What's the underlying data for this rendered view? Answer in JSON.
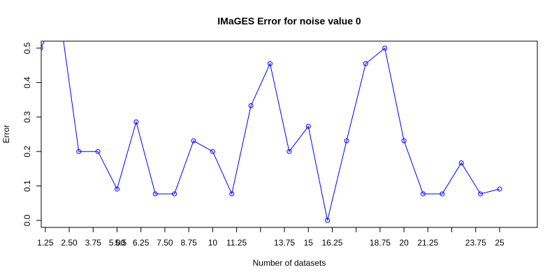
{
  "chart_data": {
    "type": "line",
    "title": "IMaGES Error for noise value 0",
    "xlabel": "Number of datasets",
    "ylabel": "Error",
    "xlim": [
      0,
      25.5
    ],
    "ylim": [
      -0.02,
      0.52
    ],
    "x_ticks": [
      {
        "value": 1.25,
        "label": "1.25"
      },
      {
        "value": 2.5,
        "label": "2.50"
      },
      {
        "value": 3.75,
        "label": "3.75"
      },
      {
        "value": 5.0,
        "label": "5.00"
      },
      {
        "value": 6.25,
        "label": "6.25"
      },
      {
        "value": 7.5,
        "label": "7.50"
      },
      {
        "value": 8.75,
        "label": "8.75"
      },
      {
        "value": 10,
        "label": "10"
      },
      {
        "value": 11.25,
        "label": "11.25"
      },
      {
        "value": 12.5,
        "label": ""
      },
      {
        "value": 13.75,
        "label": "13.75"
      },
      {
        "value": 15,
        "label": "15"
      },
      {
        "value": 16.25,
        "label": "16.25"
      },
      {
        "value": 17.5,
        "label": ""
      },
      {
        "value": 18.75,
        "label": "18.75"
      },
      {
        "value": 20,
        "label": "20"
      },
      {
        "value": 21.25,
        "label": "21.25"
      },
      {
        "value": 22.5,
        "label": ""
      },
      {
        "value": 23.75,
        "label": "23.75"
      },
      {
        "value": 25,
        "label": "25"
      }
    ],
    "y_ticks": [
      {
        "value": 0.0,
        "label": "0.0"
      },
      {
        "value": 0.1,
        "label": "0.1"
      },
      {
        "value": 0.2,
        "label": "0.2"
      },
      {
        "value": 0.3,
        "label": "0.3"
      },
      {
        "value": 0.4,
        "label": "0.4"
      },
      {
        "value": 0.5,
        "label": "0.5"
      }
    ],
    "x_misc_labels": [
      {
        "value": 5.2,
        "label": "5.5"
      }
    ],
    "series": [
      {
        "color": "#0000ff",
        "x": [
          1,
          2,
          3,
          4,
          5,
          6,
          7,
          8,
          9,
          10,
          11,
          12,
          13,
          14,
          15,
          16,
          17,
          18,
          19,
          20,
          21,
          22,
          23,
          24,
          25
        ],
        "values": [
          0.5,
          0.6,
          0.2,
          0.2,
          0.091,
          0.286,
          0.077,
          0.077,
          0.231,
          0.2,
          0.077,
          0.333,
          0.455,
          0.2,
          0.273,
          0.0,
          0.231,
          0.455,
          0.5,
          0.231,
          0.077,
          0.077,
          0.167,
          0.077,
          0.091
        ],
        "marker": "open-circle"
      }
    ],
    "grid": false,
    "legend": "none"
  }
}
